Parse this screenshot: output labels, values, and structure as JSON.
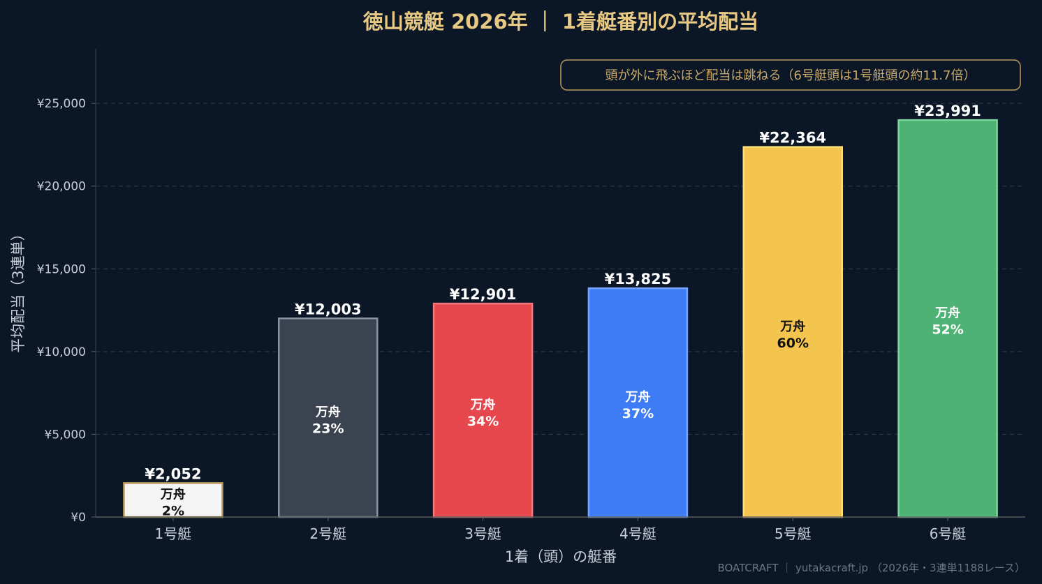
{
  "chart_data": {
    "type": "bar",
    "title": "徳山競艇 2026年 ｜ 1着艇番別の平均配当",
    "xlabel": "1着（頭）の艇番",
    "ylabel": "平均配当（3連単）",
    "categories": [
      "1号艇",
      "2号艇",
      "3号艇",
      "4号艇",
      "5号艇",
      "6号艇"
    ],
    "values": [
      2052,
      12003,
      12901,
      13825,
      22364,
      23991
    ],
    "value_labels": [
      "¥2,052",
      "¥12,003",
      "¥12,901",
      "¥13,825",
      "¥22,364",
      "¥23,991"
    ],
    "inner_title": "万舟",
    "inner_percents": [
      "2%",
      "23%",
      "34%",
      "37%",
      "60%",
      "52%"
    ],
    "ylim": [
      0,
      28000
    ],
    "yticks": [
      0,
      5000,
      10000,
      15000,
      20000,
      25000
    ],
    "ytick_labels": [
      "¥0",
      "¥5,000",
      "¥10,000",
      "¥15,000",
      "¥20,000",
      "¥25,000"
    ],
    "grid": true,
    "annotation": "頭が外に飛ぶほど配当は跳ねる（6号艇頭は1号艇頭の約11.7倍）",
    "annotation_position": "top-right",
    "footer": "BOATCRAFT ｜ yutakacraft.jp （2026年・3連単1188レース）",
    "colors": {
      "background": "#0b1727",
      "title": "#e7c983",
      "bar_fill": [
        "#f5f5f5",
        "#3b4250",
        "#e5474d",
        "#3d7cf5",
        "#f4c54e",
        "#4db274"
      ],
      "bar_stroke": [
        "#b99a5a",
        "#8a93a3",
        "#f07a80",
        "#79a4ff",
        "#fbe07a",
        "#7fd6a0"
      ],
      "inner_text": [
        "#111111",
        "#ffffff",
        "#ffffff",
        "#ffffff",
        "#111111",
        "#ffffff"
      ],
      "value_label": "#ffffff",
      "axis_text": "#c8ced8",
      "grid": "#2e3d4f",
      "annotation_border": "#b99a5a",
      "annotation_text": "#c9a86a",
      "footer_text": "#6b7685"
    }
  }
}
